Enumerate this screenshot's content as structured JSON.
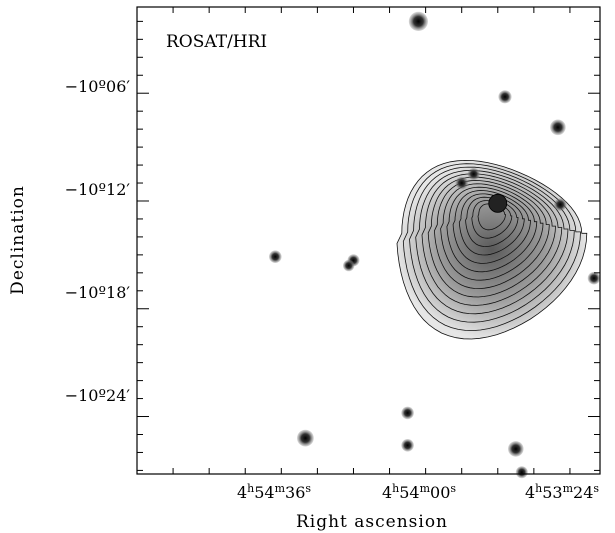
{
  "chart_data": {
    "type": "image",
    "panel_label": "ROSAT/HRI",
    "xlabel": "Right ascension",
    "ylabel": "Declination",
    "x_ticks": [
      {
        "h": "4",
        "m": "54",
        "s": "36"
      },
      {
        "h": "4",
        "m": "54",
        "s": "00"
      },
      {
        "h": "4",
        "m": "53",
        "s": "24"
      }
    ],
    "y_ticks": [
      "−10º06′",
      "−10º12′",
      "−10º18′",
      "−10º24′"
    ],
    "y_tick_values_arcmin": [
      -606,
      -612,
      -618,
      -624
    ],
    "xlim_seconds": [
      4474,
      4435.5
    ],
    "ylim_arcmin": [
      -627.2,
      -601.2
    ],
    "extended_source": {
      "center_ra_s": 4445,
      "center_dec_arcmin": -613.8,
      "contour_levels": 14
    },
    "point_sources": [
      {
        "ra": 4450.6,
        "dec": -602.0,
        "size": 2.2
      },
      {
        "ra": 4443.4,
        "dec": -606.2,
        "size": 1.2
      },
      {
        "ra": 4439.0,
        "dec": -607.9,
        "size": 1.6
      },
      {
        "ra": 4446.0,
        "dec": -610.5,
        "size": 1.0
      },
      {
        "ra": 4447.0,
        "dec": -611.0,
        "size": 1.1
      },
      {
        "ra": 4438.8,
        "dec": -612.2,
        "size": 1.1
      },
      {
        "ra": 4462.5,
        "dec": -615.1,
        "size": 1.1
      },
      {
        "ra": 4456.0,
        "dec": -615.3,
        "size": 1.0
      },
      {
        "ra": 4456.4,
        "dec": -615.6,
        "size": 0.9
      },
      {
        "ra": 4436.0,
        "dec": -616.3,
        "size": 1.1
      },
      {
        "ra": 4451.5,
        "dec": -623.8,
        "size": 1.1
      },
      {
        "ra": 4460.0,
        "dec": -625.2,
        "size": 1.8
      },
      {
        "ra": 4451.5,
        "dec": -625.6,
        "size": 1.1
      },
      {
        "ra": 4442.5,
        "dec": -625.8,
        "size": 1.6
      },
      {
        "ra": 4442.0,
        "dec": -627.1,
        "size": 1.0
      }
    ]
  }
}
